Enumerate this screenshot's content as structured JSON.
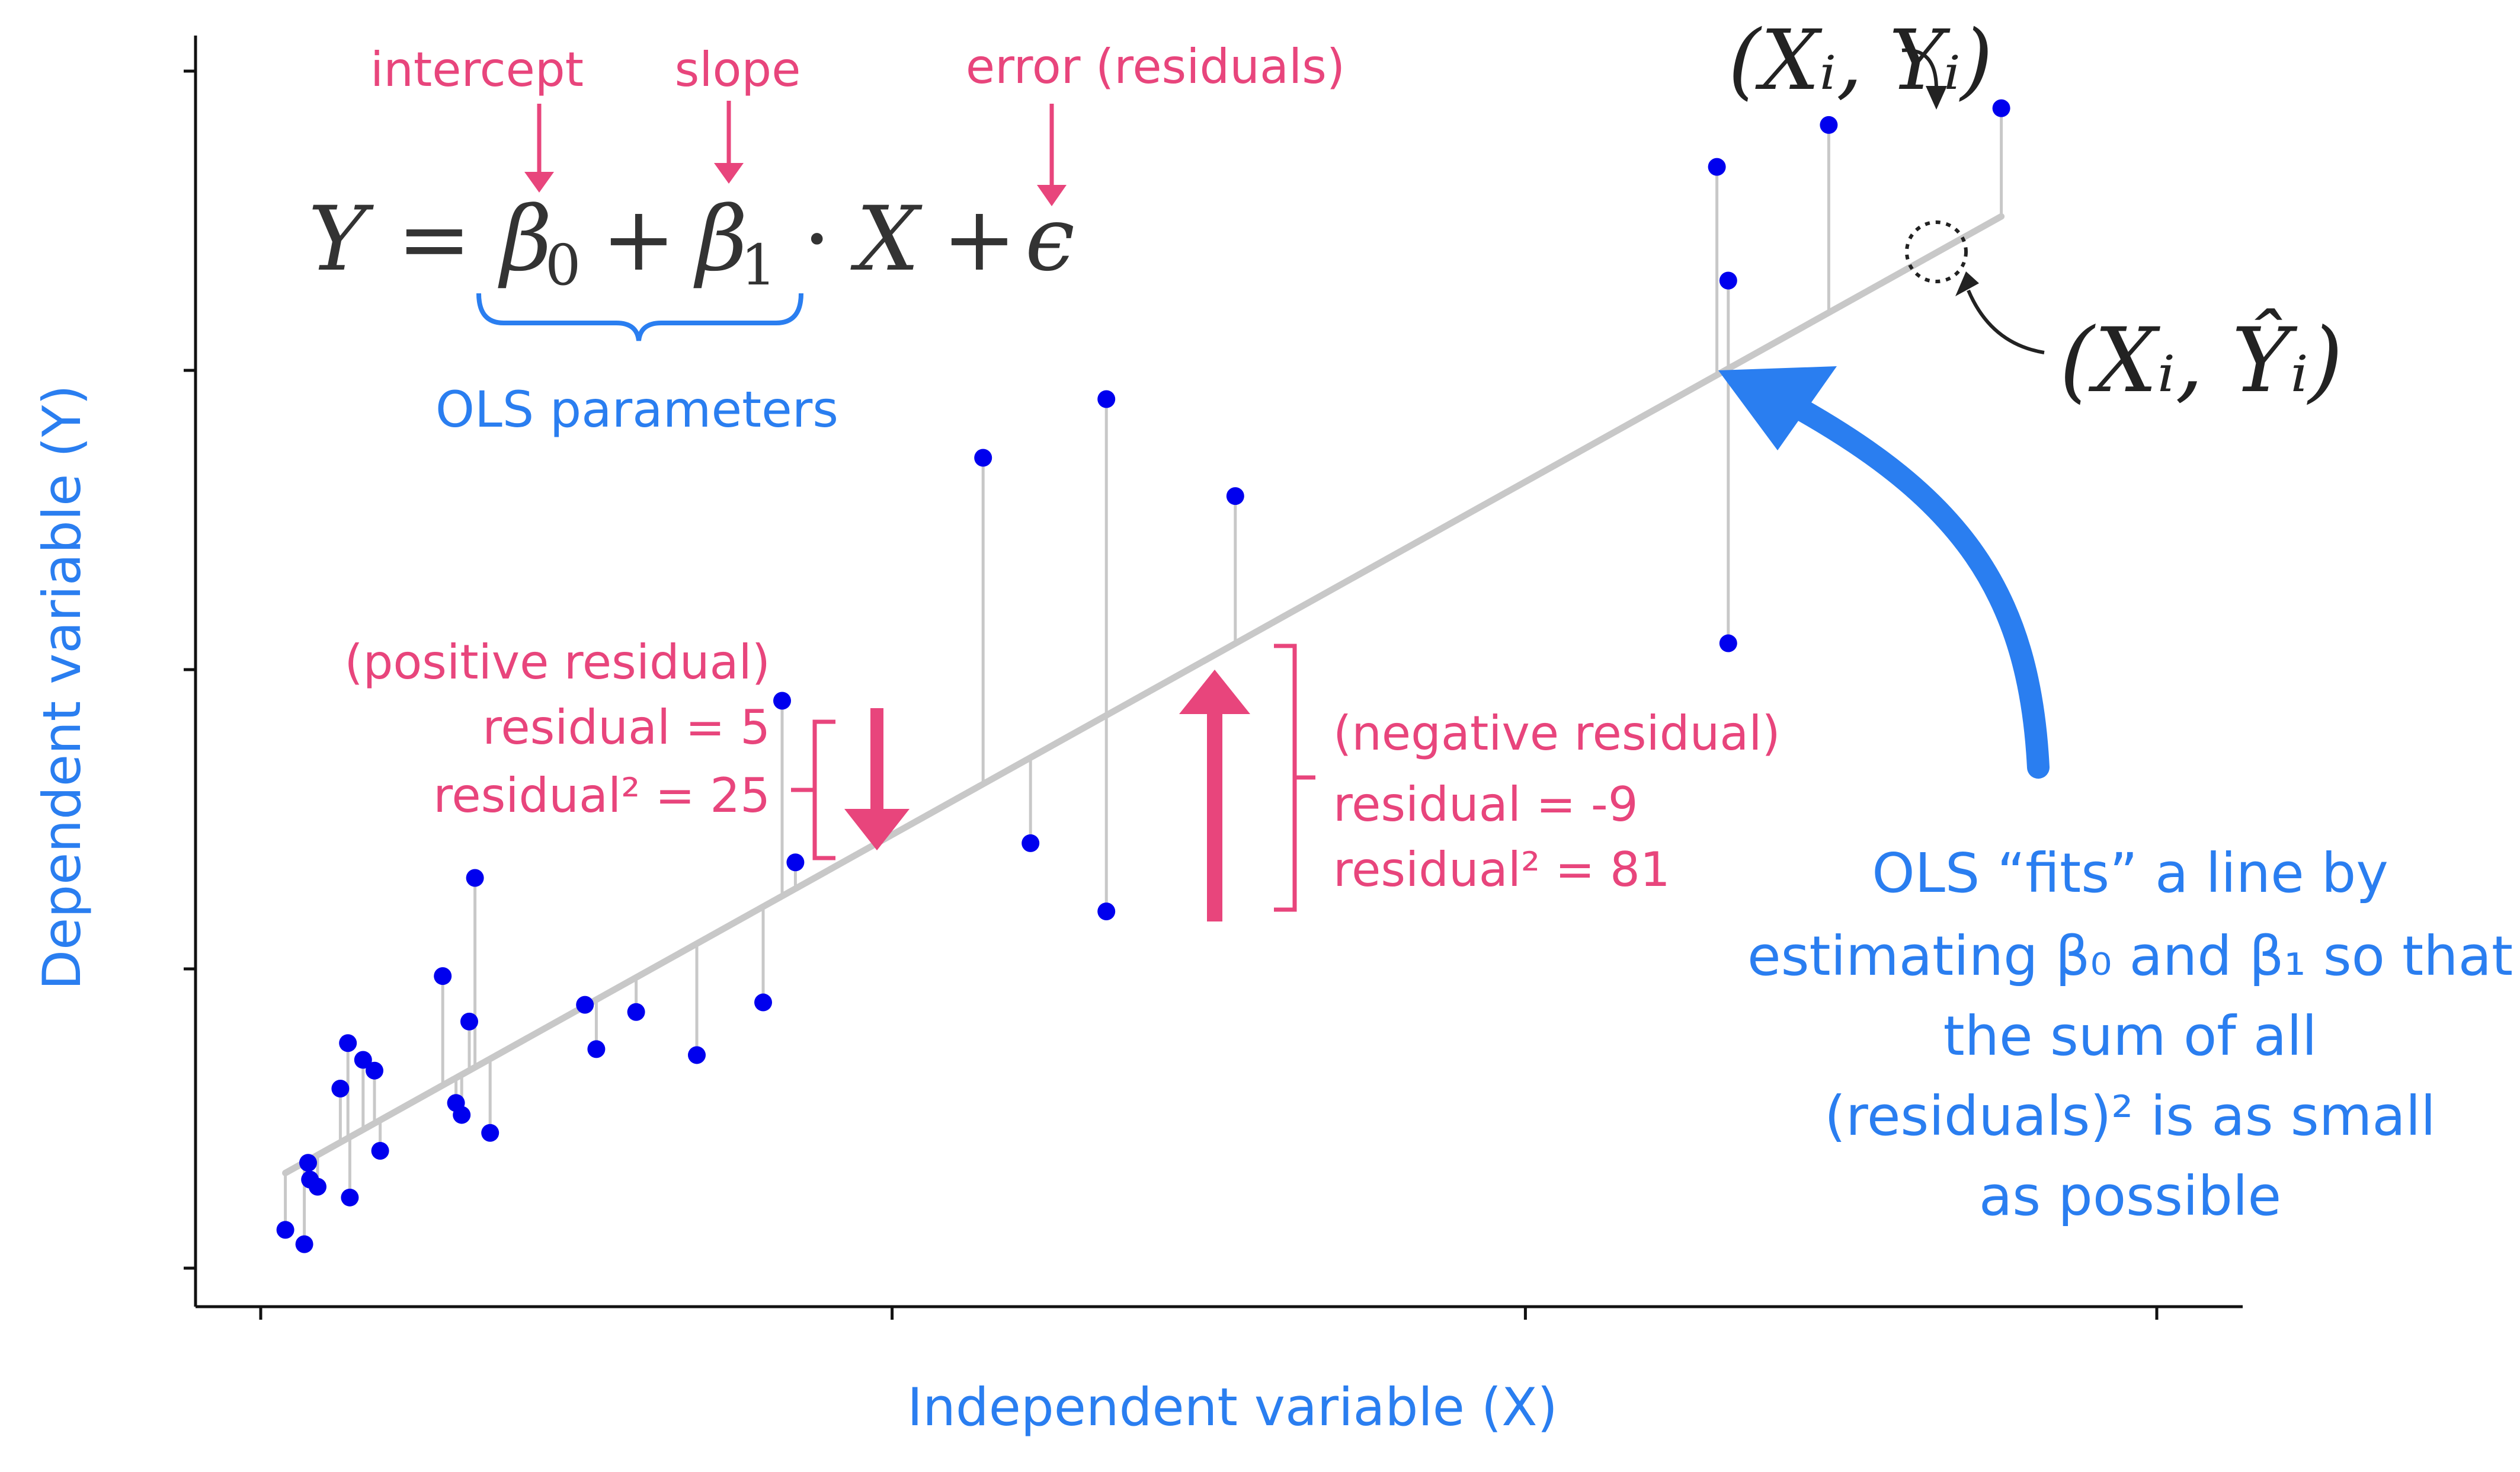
{
  "chart_data": {
    "type": "scatter",
    "title": "",
    "xlabel": "Independent variable (X)",
    "ylabel": "Dependent variable (Y)",
    "xlim": [
      0,
      100
    ],
    "ylim": [
      0,
      100
    ],
    "grid": false,
    "fit_line": {
      "intercept": 6.8,
      "slope": 0.883,
      "x_range": [
        1.3,
        91.8
      ]
    },
    "points": [
      {
        "x": 1.3,
        "y": 3.2
      },
      {
        "x": 2.3,
        "y": 2.0
      },
      {
        "x": 2.5,
        "y": 8.8
      },
      {
        "x": 2.6,
        "y": 7.4
      },
      {
        "x": 3.0,
        "y": 6.8
      },
      {
        "x": 4.2,
        "y": 15.0
      },
      {
        "x": 4.6,
        "y": 18.8
      },
      {
        "x": 4.7,
        "y": 5.9
      },
      {
        "x": 5.4,
        "y": 17.4
      },
      {
        "x": 6.0,
        "y": 16.5
      },
      {
        "x": 6.3,
        "y": 9.8
      },
      {
        "x": 9.6,
        "y": 24.4
      },
      {
        "x": 10.3,
        "y": 13.8
      },
      {
        "x": 10.6,
        "y": 12.8
      },
      {
        "x": 11.0,
        "y": 20.6
      },
      {
        "x": 11.3,
        "y": 32.6
      },
      {
        "x": 12.1,
        "y": 11.3
      },
      {
        "x": 17.1,
        "y": 22.0
      },
      {
        "x": 17.7,
        "y": 18.3
      },
      {
        "x": 19.8,
        "y": 21.4
      },
      {
        "x": 23.0,
        "y": 17.8
      },
      {
        "x": 26.5,
        "y": 22.2
      },
      {
        "x": 27.5,
        "y": 47.4
      },
      {
        "x": 28.2,
        "y": 33.9
      },
      {
        "x": 38.1,
        "y": 67.7
      },
      {
        "x": 40.6,
        "y": 35.5
      },
      {
        "x": 44.6,
        "y": 72.6
      },
      {
        "x": 44.6,
        "y": 29.8
      },
      {
        "x": 51.4,
        "y": 64.5
      },
      {
        "x": 76.8,
        "y": 92.0
      },
      {
        "x": 77.4,
        "y": 82.5
      },
      {
        "x": 77.4,
        "y": 52.2
      },
      {
        "x": 82.7,
        "y": 95.5
      },
      {
        "x": 91.8,
        "y": 96.9
      }
    ]
  },
  "equation": {
    "lhs": "Y",
    "equals": "=",
    "beta0": "β",
    "beta0_sub": "0",
    "plus1": "+",
    "beta1": "β",
    "beta1_sub": "1",
    "dot": "·",
    "x": "X",
    "plus2": "+",
    "epsilon": "ϵ"
  },
  "labels": {
    "intercept": "intercept",
    "slope": "slope",
    "error": "error (residuals)",
    "ols_parameters": "OLS parameters",
    "observed_point": "(Xᵢ, Yᵢ)",
    "fitted_point": "(Xᵢ, Ŷᵢ)",
    "positive_residual": "(positive residual)",
    "positive_residual_value": "residual = 5",
    "positive_residual_sq": "residual² =  25",
    "negative_residual": "(negative residual)",
    "negative_residual_value": "residual = -9",
    "negative_residual_sq": "residual² = 81",
    "ols_explanation": [
      "OLS “fits” a line  by",
      "estimating β₀ and β₁ so that",
      "the sum of all",
      "(residuals)² is as small",
      "as possible"
    ]
  },
  "colors": {
    "points": "#0000ee",
    "fit_line": "#c8c8c8",
    "residual_lines": "#c8c8c8",
    "axis": "#111111",
    "pink": "#e8457c",
    "blue": "#2a7ef0",
    "equation": "#333333"
  }
}
